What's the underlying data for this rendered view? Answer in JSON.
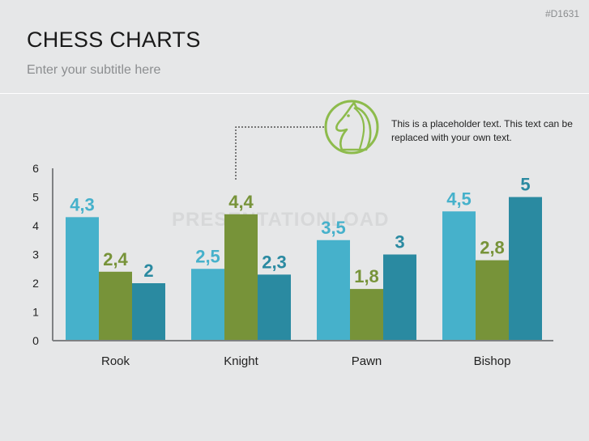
{
  "slide_code": "#D1631",
  "title": "CHESS CHARTS",
  "subtitle": "Enter your subtitle here",
  "watermark": "PRESENTATIONLOAD",
  "callout_text": "This is a placeholder text. This text can be replaced with your own text.",
  "icon": "knight-chess-piece-icon",
  "colors": {
    "series1": "#46b1cb",
    "series2": "#779339",
    "series3": "#2a8aa1",
    "label_series1": "#46b1cb",
    "label_series2": "#779339",
    "label_series3": "#2a8aa1",
    "icon": "#8dbb4c"
  },
  "chart_data": {
    "type": "bar",
    "categories": [
      "Rook",
      "Knight",
      "Pawn",
      "Bishop"
    ],
    "series": [
      {
        "values": [
          4.3,
          2.5,
          3.5,
          4.5
        ],
        "labels": [
          "4,3",
          "2,5",
          "3,5",
          "4,5"
        ]
      },
      {
        "values": [
          2.4,
          4.4,
          1.8,
          2.8
        ],
        "labels": [
          "2,4",
          "4,4",
          "1,8",
          "2,8"
        ]
      },
      {
        "values": [
          2,
          2.3,
          3,
          5
        ],
        "labels": [
          "2",
          "2,3",
          "3",
          "5"
        ]
      }
    ],
    "ylim": [
      0,
      6
    ],
    "yticks": [
      "0",
      "1",
      "2",
      "3",
      "4",
      "5",
      "6"
    ],
    "grid": false,
    "legend": "none"
  }
}
